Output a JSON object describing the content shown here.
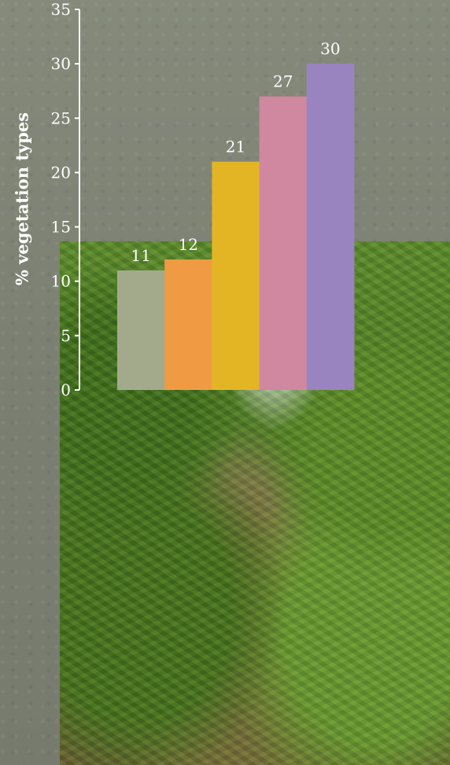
{
  "chart_data": {
    "type": "bar",
    "title": "",
    "xlabel": "",
    "ylabel": "% vegetation types",
    "ylim": [
      0,
      35
    ],
    "yticks": [
      0,
      5,
      10,
      15,
      20,
      25,
      30,
      35
    ],
    "categories": [
      "",
      "",
      "",
      "",
      ""
    ],
    "values": [
      11,
      12,
      21,
      27,
      30
    ],
    "data_labels": [
      "11",
      "12",
      "21",
      "27",
      "30"
    ],
    "colors": [
      "#a3aa8c",
      "#f09b44",
      "#e3b524",
      "#d088a0",
      "#9a84c0"
    ],
    "legend": "none",
    "grid": false
  }
}
